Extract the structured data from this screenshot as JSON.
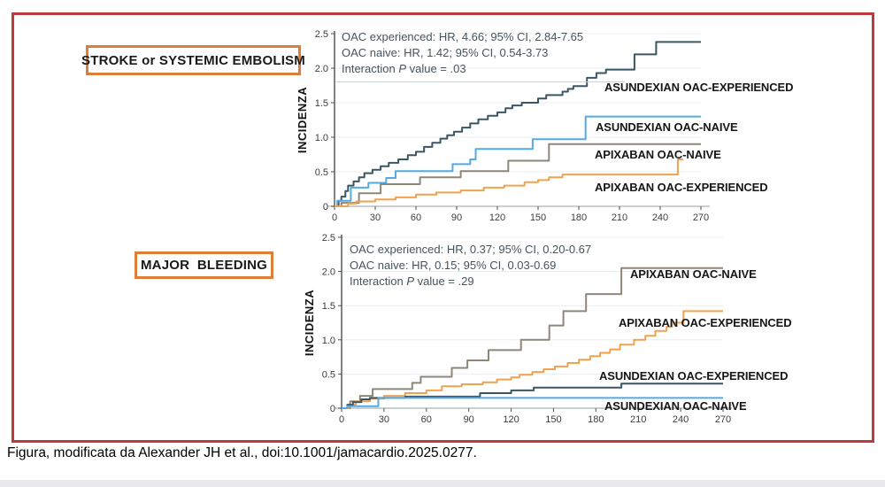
{
  "caption": "Figura, modificata da Alexander JH et al., doi:10.1001/jamacardio.2025.0277.",
  "panels": [
    {
      "title": "STROKE or SYSTEMIC EMBOLISM"
    },
    {
      "title": "MAJOR  BLEEDING"
    }
  ],
  "colors": {
    "frame_border": "#bf3a3c",
    "panel_border": "#df7e38",
    "grid": "#e9edef",
    "axis_x": "#b9bfc4",
    "axis_y": "#4a4f52",
    "navy": "#3a5663",
    "light_blue": "#54aae4",
    "taupe_gray": "#8e8778",
    "orange": "#f0a24e"
  },
  "chart_data": [
    {
      "type": "line",
      "step": true,
      "panel_title": "STROKE or SYSTEMIC EMBOLISM",
      "ylabel": "INCIDENZA",
      "xlim": [
        0,
        270
      ],
      "ylim": [
        0,
        2.5
      ],
      "x_ticks": [
        0,
        30,
        60,
        90,
        120,
        150,
        180,
        210,
        240,
        270
      ],
      "y_ticks": [
        "0",
        "0.5",
        "1.0",
        "1.5",
        "2.0",
        "2.5"
      ],
      "grid": true,
      "legend_position": "labels-right",
      "annotation": {
        "line1": "OAC experienced: HR, 4.66; 95% CI, 2.84-7.65",
        "line2": "OAC naive: HR, 1.42; 95% CI, 0.54-3.73",
        "line3_prefix": "Interaction ",
        "line3_italic": "P",
        "line3_suffix": " value = .03"
      },
      "series": [
        {
          "name": "ASUNDEXIAN OAC-EXPERIENCED",
          "color": "#3a5663",
          "points": [
            [
              0,
              0
            ],
            [
              3,
              0.08
            ],
            [
              5,
              0.14
            ],
            [
              8,
              0.22
            ],
            [
              10,
              0.3
            ],
            [
              14,
              0.36
            ],
            [
              18,
              0.42
            ],
            [
              22,
              0.48
            ],
            [
              28,
              0.53
            ],
            [
              34,
              0.58
            ],
            [
              40,
              0.63
            ],
            [
              47,
              0.68
            ],
            [
              54,
              0.74
            ],
            [
              60,
              0.79
            ],
            [
              66,
              0.86
            ],
            [
              72,
              0.92
            ],
            [
              78,
              0.98
            ],
            [
              83,
              1.03
            ],
            [
              88,
              1.08
            ],
            [
              94,
              1.14
            ],
            [
              100,
              1.2
            ],
            [
              106,
              1.26
            ],
            [
              113,
              1.31
            ],
            [
              120,
              1.36
            ],
            [
              126,
              1.42
            ],
            [
              131,
              1.46
            ],
            [
              138,
              1.5
            ],
            [
              150,
              1.56
            ],
            [
              156,
              1.61
            ],
            [
              168,
              1.66
            ],
            [
              172,
              1.7
            ],
            [
              176,
              1.74
            ],
            [
              186,
              1.86
            ],
            [
              193,
              1.93
            ],
            [
              200,
              1.98
            ],
            [
              221,
              2.2
            ],
            [
              237,
              2.38
            ],
            [
              270,
              2.38
            ]
          ]
        },
        {
          "name": "ASUNDEXIAN OAC-NAIVE",
          "color": "#54aae4",
          "points": [
            [
              0,
              0
            ],
            [
              2,
              0.08
            ],
            [
              12,
              0.27
            ],
            [
              25,
              0.34
            ],
            [
              38,
              0.41
            ],
            [
              45,
              0.51
            ],
            [
              87,
              0.61
            ],
            [
              100,
              0.68
            ],
            [
              104,
              0.83
            ],
            [
              146,
              0.97
            ],
            [
              185,
              1.3
            ],
            [
              270,
              1.3
            ]
          ]
        },
        {
          "name": "APIXABAN OAC-NAIVE",
          "color": "#8e8778",
          "points": [
            [
              0,
              0
            ],
            [
              5,
              0.05
            ],
            [
              18,
              0.19
            ],
            [
              34,
              0.32
            ],
            [
              63,
              0.42
            ],
            [
              93,
              0.51
            ],
            [
              128,
              0.66
            ],
            [
              158,
              0.9
            ],
            [
              270,
              0.9
            ]
          ]
        },
        {
          "name": "APIXABAN OAC-EXPERIENCED",
          "color": "#f0a24e",
          "points": [
            [
              0,
              0
            ],
            [
              10,
              0.04
            ],
            [
              16,
              0.07
            ],
            [
              30,
              0.1
            ],
            [
              45,
              0.13
            ],
            [
              60,
              0.17
            ],
            [
              75,
              0.2
            ],
            [
              93,
              0.23
            ],
            [
              110,
              0.27
            ],
            [
              125,
              0.3
            ],
            [
              140,
              0.35
            ],
            [
              150,
              0.38
            ],
            [
              158,
              0.42
            ],
            [
              168,
              0.46
            ],
            [
              252,
              0.46
            ],
            [
              253,
              0.68
            ],
            [
              257,
              0.68
            ]
          ]
        }
      ]
    },
    {
      "type": "line",
      "step": true,
      "panel_title": "MAJOR BLEEDING",
      "ylabel": "INCIDENZA",
      "xlim": [
        0,
        270
      ],
      "ylim": [
        0,
        2.5
      ],
      "x_ticks": [
        0,
        30,
        60,
        90,
        120,
        150,
        180,
        210,
        240,
        270
      ],
      "y_ticks": [
        "0",
        "0.5",
        "1.0",
        "1.5",
        "2.0",
        "2.5"
      ],
      "grid": true,
      "legend_position": "labels-right",
      "annotation": {
        "line1": "OAC experienced: HR, 0.37; 95% CI, 0.20-0.67",
        "line2": "OAC naive: HR, 0.15; 95% CI, 0.03-0.69",
        "line3_prefix": "Interaction ",
        "line3_italic": "P",
        "line3_suffix": " value = .29"
      },
      "series": [
        {
          "name": "APIXABAN OAC-NAIVE",
          "color": "#8e8778",
          "points": [
            [
              0,
              0
            ],
            [
              6,
              0.1
            ],
            [
              13,
              0.18
            ],
            [
              22,
              0.28
            ],
            [
              50,
              0.37
            ],
            [
              56,
              0.46
            ],
            [
              78,
              0.59
            ],
            [
              89,
              0.7
            ],
            [
              104,
              0.85
            ],
            [
              127,
              1.0
            ],
            [
              147,
              1.21
            ],
            [
              157,
              1.42
            ],
            [
              173,
              1.67
            ],
            [
              198,
              2.05
            ],
            [
              270,
              2.05
            ]
          ]
        },
        {
          "name": "APIXABAN OAC-EXPERIENCED",
          "color": "#f0a24e",
          "points": [
            [
              0,
              0
            ],
            [
              5,
              0.05
            ],
            [
              10,
              0.1
            ],
            [
              20,
              0.14
            ],
            [
              30,
              0.18
            ],
            [
              45,
              0.22
            ],
            [
              60,
              0.26
            ],
            [
              71,
              0.32
            ],
            [
              85,
              0.35
            ],
            [
              100,
              0.38
            ],
            [
              110,
              0.42
            ],
            [
              120,
              0.45
            ],
            [
              126,
              0.49
            ],
            [
              135,
              0.53
            ],
            [
              143,
              0.57
            ],
            [
              151,
              0.61
            ],
            [
              160,
              0.66
            ],
            [
              168,
              0.71
            ],
            [
              176,
              0.76
            ],
            [
              183,
              0.81
            ],
            [
              190,
              0.86
            ],
            [
              197,
              0.93
            ],
            [
              207,
              1.0
            ],
            [
              215,
              1.06
            ],
            [
              222,
              1.13
            ],
            [
              230,
              1.19
            ],
            [
              234,
              1.25
            ],
            [
              242,
              1.42
            ],
            [
              270,
              1.42
            ]
          ]
        },
        {
          "name": "ASUNDEXIAN OAC-EXPERIENCED",
          "color": "#3a5663",
          "points": [
            [
              0,
              0
            ],
            [
              4,
              0.05
            ],
            [
              8,
              0.09
            ],
            [
              14,
              0.13
            ],
            [
              20,
              0.15
            ],
            [
              45,
              0.17
            ],
            [
              98,
              0.22
            ],
            [
              120,
              0.26
            ],
            [
              136,
              0.3
            ],
            [
              198,
              0.36
            ],
            [
              270,
              0.36
            ]
          ]
        },
        {
          "name": "ASUNDEXIAN OAC-NAIVE",
          "color": "#54aae4",
          "points": [
            [
              0,
              0
            ],
            [
              4,
              0.03
            ],
            [
              26,
              0.15
            ],
            [
              270,
              0.15
            ]
          ]
        }
      ]
    }
  ]
}
